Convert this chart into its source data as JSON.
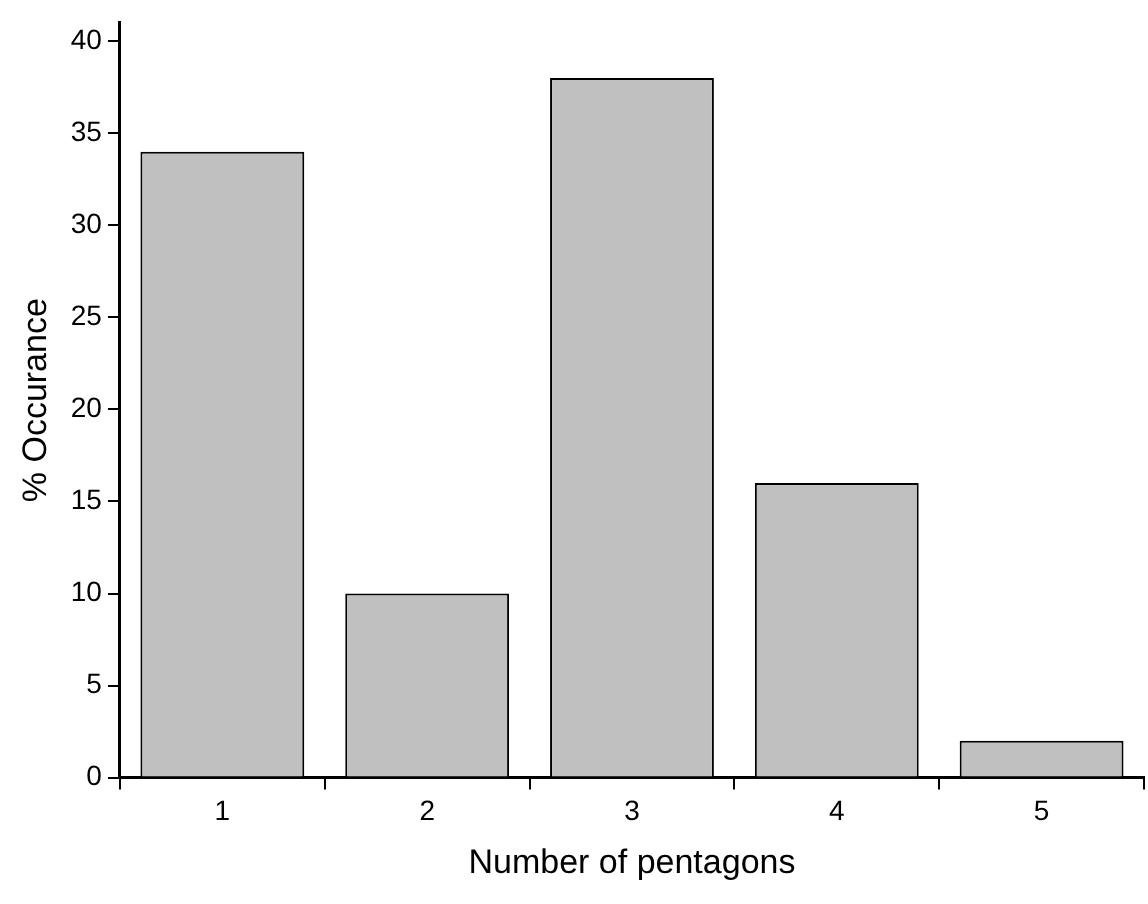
{
  "chart_data": {
    "type": "bar",
    "xlabel": "Number of pentagons",
    "ylabel": "% Occurance",
    "categories": [
      "1",
      "2",
      "3",
      "4",
      "5"
    ],
    "values": [
      34,
      10,
      38,
      16,
      2
    ],
    "color": "#c0c0c0",
    "ylim": [
      0,
      41
    ],
    "yticks": [
      0,
      5,
      10,
      15,
      20,
      25,
      30,
      35,
      40
    ],
    "grid": false,
    "legend": false
  }
}
